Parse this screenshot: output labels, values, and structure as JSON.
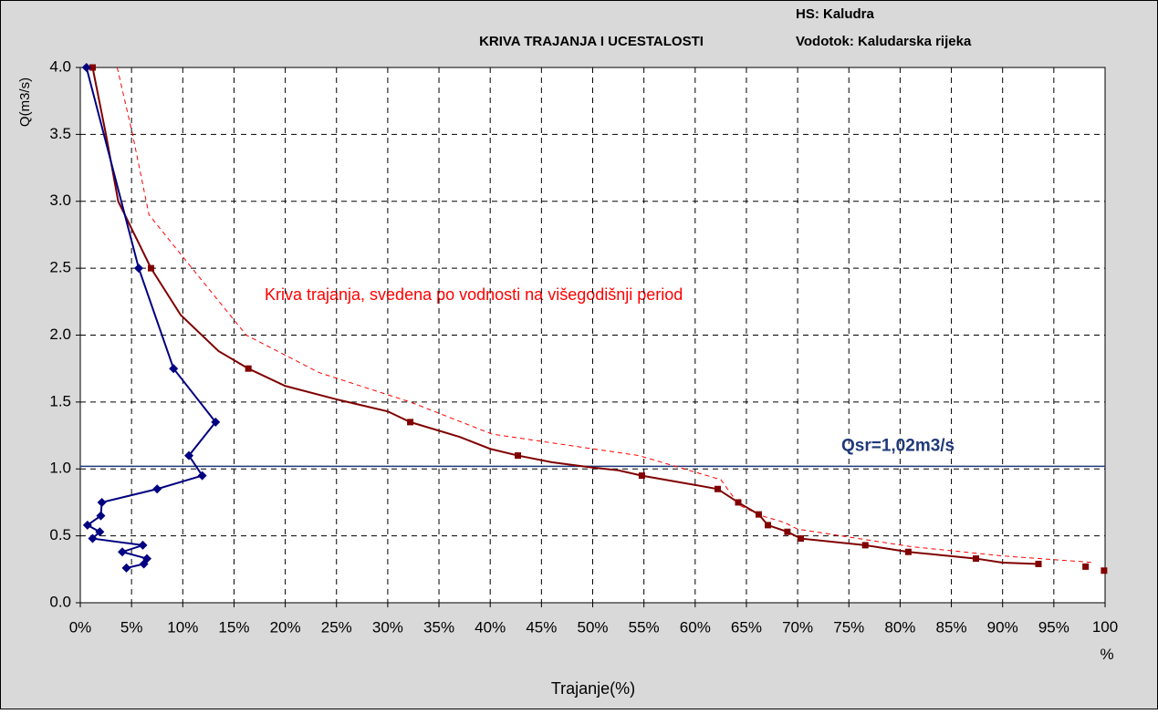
{
  "chart_data": {
    "type": "line",
    "title": "KRIVA TRAJANJA I UCESTALOSTI",
    "station": "HS: Kaludra",
    "river": "Vodotok: Kaludarska rijeka",
    "annotation": "Kriva trajanja, svedena po vodnosti na višegodišnji period",
    "ylabel": "Q(m3/s)",
    "xlabel": "Trajanje(%)",
    "xlim": [
      0,
      100
    ],
    "ylim": [
      0,
      4
    ],
    "xticks": [
      {
        "value": 0,
        "label": "0%"
      },
      {
        "value": 5,
        "label": "5%"
      },
      {
        "value": 10,
        "label": "10%"
      },
      {
        "value": 15,
        "label": "15%"
      },
      {
        "value": 20,
        "label": "20%"
      },
      {
        "value": 25,
        "label": "25%"
      },
      {
        "value": 30,
        "label": "30%"
      },
      {
        "value": 35,
        "label": "35%"
      },
      {
        "value": 40,
        "label": "40%"
      },
      {
        "value": 45,
        "label": "45%"
      },
      {
        "value": 50,
        "label": "50%"
      },
      {
        "value": 55,
        "label": "55%"
      },
      {
        "value": 60,
        "label": "60%"
      },
      {
        "value": 65,
        "label": "65%"
      },
      {
        "value": 70,
        "label": "70%"
      },
      {
        "value": 75,
        "label": "75%"
      },
      {
        "value": 80,
        "label": "80%"
      },
      {
        "value": 85,
        "label": "85%"
      },
      {
        "value": 90,
        "label": "90%"
      },
      {
        "value": 95,
        "label": "95%"
      },
      {
        "value": 100,
        "label": "100\n%"
      }
    ],
    "yticks": [
      {
        "value": 0,
        "label": "0.0"
      },
      0.5,
      {
        "value": 1,
        "label": "1.0"
      },
      1.5,
      {
        "value": 2,
        "label": "2.0"
      },
      2.5,
      {
        "value": 3,
        "label": "3.0"
      },
      3.5,
      {
        "value": 4,
        "label": "4.0"
      }
    ],
    "grid": true,
    "series": [
      {
        "color": "#ff0000",
        "dash": true,
        "line": true,
        "marker": "none",
        "x": [
          3.6,
          5.1,
          6.7,
          10.9,
          16.2,
          23.3,
          32.2,
          40.2,
          54.5,
          62.5,
          64.3,
          66.5,
          68.7,
          70,
          81,
          90,
          99
        ],
        "values": [
          4.0,
          3.5,
          2.9,
          2.5,
          2.0,
          1.72,
          1.5,
          1.26,
          1.1,
          0.92,
          0.73,
          0.65,
          0.6,
          0.55,
          0.42,
          0.35,
          0.3
        ]
      },
      {
        "color": "#800000",
        "dash": false,
        "line": true,
        "marker": "none",
        "x": [
          1.2,
          2.5,
          3.7,
          6.9,
          9.8,
          13.5,
          16.4,
          20,
          25,
          30,
          32.2,
          37,
          40,
          42.7,
          46,
          50,
          52.5,
          54.8,
          60,
          62.2,
          64.2,
          66.2,
          67.1,
          69,
          70.3,
          76.6,
          80.8,
          87.4,
          90,
          93.5
        ],
        "values": [
          4.0,
          3.5,
          3.0,
          2.5,
          2.15,
          1.88,
          1.75,
          1.62,
          1.52,
          1.43,
          1.35,
          1.24,
          1.15,
          1.1,
          1.05,
          1.01,
          0.99,
          0.95,
          0.88,
          0.85,
          0.75,
          0.66,
          0.58,
          0.53,
          0.48,
          0.43,
          0.38,
          0.33,
          0.3,
          0.29
        ]
      },
      {
        "color": "#800000",
        "dash": false,
        "line": false,
        "marker": "square",
        "x": [
          1.2,
          6.9,
          16.4,
          32.2,
          42.7,
          54.8,
          62.2,
          64.2,
          66.2,
          67.1,
          69,
          70.3,
          76.6,
          80.8,
          87.4,
          93.5,
          98.1,
          99.9
        ],
        "values": [
          4.0,
          2.5,
          1.75,
          1.35,
          1.1,
          0.95,
          0.85,
          0.75,
          0.66,
          0.58,
          0.53,
          0.48,
          0.43,
          0.38,
          0.33,
          0.29,
          0.27,
          0.24
        ]
      },
      {
        "color": "#000080",
        "dash": false,
        "line": true,
        "marker": "diamond",
        "x": [
          0.6,
          5.7,
          9.1,
          13.2,
          10.6,
          11.9,
          7.5,
          2.1,
          2.0,
          0.7,
          1.9,
          1.2,
          6.1,
          4.1,
          6.5,
          6.2,
          4.5
        ],
        "values": [
          4.0,
          2.5,
          1.75,
          1.35,
          1.1,
          0.95,
          0.85,
          0.75,
          0.65,
          0.58,
          0.53,
          0.48,
          0.43,
          0.38,
          0.33,
          0.29,
          0.26
        ]
      }
    ],
    "reference_lines": [
      {
        "value": 1.02,
        "label": "Qsr=1,02m3/s",
        "color": "#1f3a7a"
      }
    ]
  }
}
